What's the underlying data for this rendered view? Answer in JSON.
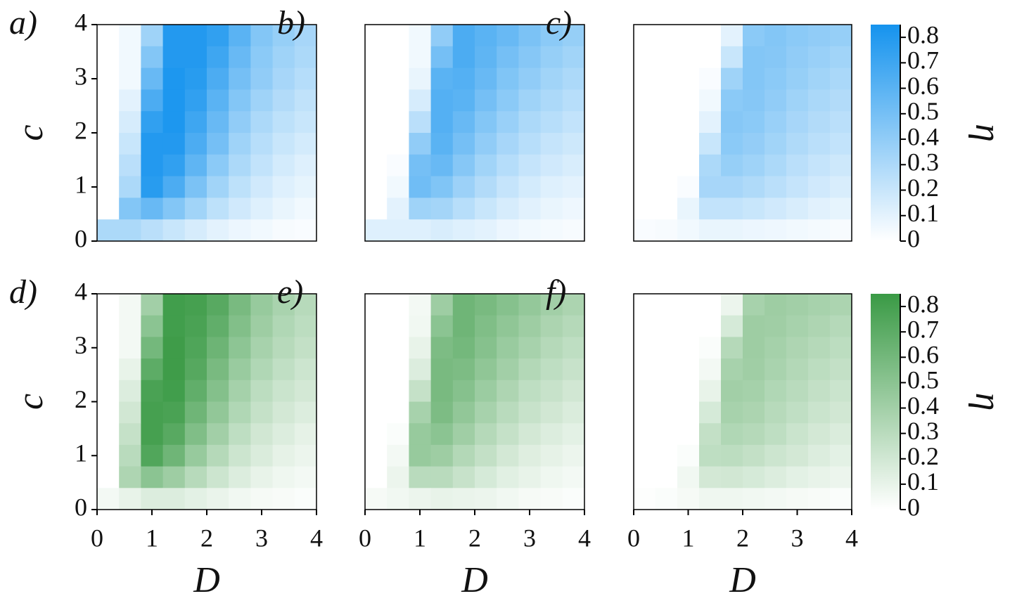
{
  "chart_data": [
    {
      "type": "heatmap",
      "label": "a)",
      "color": "#1593ee",
      "zlim": [
        0,
        0.85
      ],
      "x": [
        0.2,
        0.6,
        1.0,
        1.4,
        1.8,
        2.2,
        2.6,
        3.0,
        3.4,
        3.8
      ],
      "y": [
        3.8,
        3.4,
        3.0,
        2.6,
        2.2,
        1.8,
        1.4,
        1.0,
        0.6,
        0.2
      ],
      "z": [
        [
          0,
          0.05,
          0.35,
          0.8,
          0.8,
          0.75,
          0.6,
          0.45,
          0.38,
          0.32
        ],
        [
          0,
          0.05,
          0.45,
          0.8,
          0.8,
          0.7,
          0.55,
          0.42,
          0.35,
          0.3
        ],
        [
          0,
          0.05,
          0.55,
          0.82,
          0.78,
          0.65,
          0.5,
          0.4,
          0.32,
          0.27
        ],
        [
          0,
          0.1,
          0.65,
          0.82,
          0.75,
          0.6,
          0.45,
          0.35,
          0.28,
          0.23
        ],
        [
          0,
          0.15,
          0.75,
          0.82,
          0.7,
          0.55,
          0.4,
          0.3,
          0.24,
          0.2
        ],
        [
          0,
          0.2,
          0.8,
          0.8,
          0.65,
          0.5,
          0.35,
          0.26,
          0.2,
          0.16
        ],
        [
          0,
          0.25,
          0.8,
          0.75,
          0.58,
          0.42,
          0.3,
          0.22,
          0.16,
          0.12
        ],
        [
          0,
          0.3,
          0.78,
          0.65,
          0.48,
          0.34,
          0.24,
          0.17,
          0.12,
          0.09
        ],
        [
          0,
          0.45,
          0.55,
          0.45,
          0.34,
          0.24,
          0.17,
          0.12,
          0.08,
          0.05
        ],
        [
          0.3,
          0.3,
          0.25,
          0.2,
          0.15,
          0.1,
          0.07,
          0.05,
          0.03,
          0.02
        ]
      ],
      "xlim": [
        0,
        4
      ],
      "ylim": [
        0,
        4
      ],
      "yticks": [
        0,
        1,
        2,
        3,
        4
      ],
      "ylabel": "c"
    },
    {
      "type": "heatmap",
      "label": "b)",
      "color": "#1593ee",
      "zlim": [
        0,
        0.85
      ],
      "x": [
        0.2,
        0.6,
        1.0,
        1.4,
        1.8,
        2.2,
        2.6,
        3.0,
        3.4,
        3.8
      ],
      "y": [
        3.8,
        3.4,
        3.0,
        2.6,
        2.2,
        1.8,
        1.4,
        1.0,
        0.6,
        0.2
      ],
      "z": [
        [
          0,
          0,
          0.05,
          0.4,
          0.65,
          0.6,
          0.55,
          0.48,
          0.42,
          0.38
        ],
        [
          0,
          0,
          0.05,
          0.5,
          0.65,
          0.58,
          0.5,
          0.44,
          0.38,
          0.34
        ],
        [
          0,
          0,
          0.08,
          0.6,
          0.62,
          0.55,
          0.46,
          0.4,
          0.34,
          0.3
        ],
        [
          0,
          0,
          0.15,
          0.62,
          0.6,
          0.5,
          0.42,
          0.35,
          0.3,
          0.26
        ],
        [
          0,
          0,
          0.25,
          0.62,
          0.55,
          0.45,
          0.37,
          0.3,
          0.26,
          0.22
        ],
        [
          0,
          0,
          0.4,
          0.6,
          0.5,
          0.4,
          0.32,
          0.26,
          0.21,
          0.18
        ],
        [
          0,
          0.02,
          0.5,
          0.55,
          0.44,
          0.34,
          0.27,
          0.21,
          0.17,
          0.14
        ],
        [
          0,
          0.05,
          0.52,
          0.46,
          0.36,
          0.28,
          0.21,
          0.16,
          0.12,
          0.1
        ],
        [
          0,
          0.1,
          0.35,
          0.33,
          0.26,
          0.2,
          0.15,
          0.11,
          0.08,
          0.06
        ],
        [
          0.12,
          0.12,
          0.12,
          0.14,
          0.12,
          0.1,
          0.07,
          0.05,
          0.04,
          0.03
        ]
      ],
      "xlim": [
        0,
        4
      ],
      "ylim": [
        0,
        4
      ]
    },
    {
      "type": "heatmap",
      "label": "c)",
      "color": "#1593ee",
      "zlim": [
        0,
        0.85
      ],
      "x": [
        0.2,
        0.6,
        1.0,
        1.4,
        1.8,
        2.2,
        2.6,
        3.0,
        3.4,
        3.8
      ],
      "y": [
        3.8,
        3.4,
        3.0,
        2.6,
        2.2,
        1.8,
        1.4,
        1.0,
        0.6,
        0.2
      ],
      "z": [
        [
          0,
          0,
          0,
          0,
          0.1,
          0.42,
          0.45,
          0.42,
          0.4,
          0.38
        ],
        [
          0,
          0,
          0,
          0,
          0.2,
          0.45,
          0.44,
          0.4,
          0.37,
          0.34
        ],
        [
          0,
          0,
          0,
          0.02,
          0.35,
          0.45,
          0.42,
          0.38,
          0.34,
          0.31
        ],
        [
          0,
          0,
          0,
          0.05,
          0.42,
          0.44,
          0.4,
          0.35,
          0.31,
          0.28
        ],
        [
          0,
          0,
          0,
          0.1,
          0.44,
          0.42,
          0.37,
          0.32,
          0.28,
          0.25
        ],
        [
          0,
          0,
          0,
          0.2,
          0.42,
          0.39,
          0.34,
          0.29,
          0.25,
          0.22
        ],
        [
          0,
          0,
          0,
          0.3,
          0.38,
          0.35,
          0.3,
          0.25,
          0.21,
          0.18
        ],
        [
          0,
          0,
          0.02,
          0.32,
          0.32,
          0.29,
          0.25,
          0.21,
          0.17,
          0.14
        ],
        [
          0,
          0,
          0.08,
          0.22,
          0.22,
          0.2,
          0.17,
          0.14,
          0.11,
          0.09
        ],
        [
          0.02,
          0.03,
          0.05,
          0.08,
          0.08,
          0.07,
          0.06,
          0.05,
          0.04,
          0.03
        ]
      ],
      "xlim": [
        0,
        4
      ],
      "ylim": [
        0,
        4
      ]
    },
    {
      "type": "colorbar",
      "color": "#1593ee",
      "lim": [
        0,
        0.85
      ],
      "ticks": [
        0,
        0.1,
        0.2,
        0.3,
        0.4,
        0.5,
        0.6,
        0.7,
        0.8
      ],
      "label": "η"
    },
    {
      "type": "heatmap",
      "label": "d)",
      "color": "#3a9a45",
      "zlim": [
        0,
        0.85
      ],
      "x": [
        0.2,
        0.6,
        1.0,
        1.4,
        1.8,
        2.2,
        2.6,
        3.0,
        3.4,
        3.8
      ],
      "y": [
        3.8,
        3.4,
        3.0,
        2.6,
        2.2,
        1.8,
        1.4,
        1.0,
        0.6,
        0.2
      ],
      "z": [
        [
          0,
          0.05,
          0.4,
          0.82,
          0.8,
          0.72,
          0.58,
          0.45,
          0.37,
          0.31
        ],
        [
          0,
          0.05,
          0.5,
          0.82,
          0.78,
          0.68,
          0.54,
          0.42,
          0.34,
          0.29
        ],
        [
          0,
          0.05,
          0.6,
          0.83,
          0.76,
          0.63,
          0.49,
          0.38,
          0.31,
          0.26
        ],
        [
          0,
          0.1,
          0.7,
          0.83,
          0.73,
          0.58,
          0.44,
          0.34,
          0.27,
          0.22
        ],
        [
          0,
          0.15,
          0.78,
          0.82,
          0.68,
          0.53,
          0.39,
          0.29,
          0.23,
          0.19
        ],
        [
          0,
          0.2,
          0.8,
          0.78,
          0.62,
          0.47,
          0.34,
          0.25,
          0.19,
          0.15
        ],
        [
          0,
          0.25,
          0.8,
          0.72,
          0.55,
          0.4,
          0.28,
          0.2,
          0.15,
          0.11
        ],
        [
          0,
          0.3,
          0.75,
          0.62,
          0.45,
          0.32,
          0.22,
          0.16,
          0.11,
          0.08
        ],
        [
          0,
          0.35,
          0.5,
          0.42,
          0.31,
          0.22,
          0.15,
          0.1,
          0.07,
          0.05
        ],
        [
          0.05,
          0.1,
          0.15,
          0.15,
          0.12,
          0.09,
          0.06,
          0.04,
          0.03,
          0.02
        ]
      ],
      "xlim": [
        0,
        4
      ],
      "ylim": [
        0,
        4
      ],
      "xticks": [
        0,
        1,
        2,
        3,
        4
      ],
      "yticks": [
        0,
        1,
        2,
        3,
        4
      ],
      "xlabel": "D",
      "ylabel": "c"
    },
    {
      "type": "heatmap",
      "label": "e)",
      "color": "#3a9a45",
      "zlim": [
        0,
        0.85
      ],
      "x": [
        0.2,
        0.6,
        1.0,
        1.4,
        1.8,
        2.2,
        2.6,
        3.0,
        3.4,
        3.8
      ],
      "y": [
        3.8,
        3.4,
        3.0,
        2.6,
        2.2,
        1.8,
        1.4,
        1.0,
        0.6,
        0.2
      ],
      "z": [
        [
          0,
          0,
          0.05,
          0.42,
          0.62,
          0.58,
          0.52,
          0.46,
          0.4,
          0.36
        ],
        [
          0,
          0,
          0.06,
          0.5,
          0.62,
          0.55,
          0.48,
          0.42,
          0.36,
          0.32
        ],
        [
          0,
          0,
          0.1,
          0.56,
          0.6,
          0.52,
          0.44,
          0.38,
          0.32,
          0.28
        ],
        [
          0,
          0,
          0.15,
          0.58,
          0.56,
          0.48,
          0.4,
          0.33,
          0.28,
          0.24
        ],
        [
          0,
          0,
          0.25,
          0.58,
          0.52,
          0.43,
          0.35,
          0.28,
          0.24,
          0.2
        ],
        [
          0,
          0,
          0.38,
          0.56,
          0.47,
          0.38,
          0.3,
          0.24,
          0.2,
          0.16
        ],
        [
          0,
          0.02,
          0.45,
          0.5,
          0.41,
          0.32,
          0.25,
          0.19,
          0.15,
          0.12
        ],
        [
          0,
          0.05,
          0.45,
          0.42,
          0.33,
          0.26,
          0.19,
          0.14,
          0.11,
          0.08
        ],
        [
          0,
          0.08,
          0.3,
          0.3,
          0.24,
          0.18,
          0.13,
          0.1,
          0.07,
          0.05
        ],
        [
          0.04,
          0.06,
          0.08,
          0.1,
          0.09,
          0.08,
          0.06,
          0.04,
          0.03,
          0.02
        ]
      ],
      "xlim": [
        0,
        4
      ],
      "ylim": [
        0,
        4
      ],
      "xticks": [
        0,
        1,
        2,
        3,
        4
      ],
      "xlabel": "D"
    },
    {
      "type": "heatmap",
      "label": "f)",
      "color": "#3a9a45",
      "zlim": [
        0,
        0.85
      ],
      "x": [
        0.2,
        0.6,
        1.0,
        1.4,
        1.8,
        2.2,
        2.6,
        3.0,
        3.4,
        3.8
      ],
      "y": [
        3.8,
        3.4,
        3.0,
        2.6,
        2.2,
        1.8,
        1.4,
        1.0,
        0.6,
        0.2
      ],
      "z": [
        [
          0,
          0,
          0,
          0,
          0.08,
          0.38,
          0.42,
          0.4,
          0.38,
          0.36
        ],
        [
          0,
          0,
          0,
          0,
          0.18,
          0.42,
          0.41,
          0.38,
          0.35,
          0.32
        ],
        [
          0,
          0,
          0,
          0.02,
          0.32,
          0.42,
          0.39,
          0.35,
          0.32,
          0.29
        ],
        [
          0,
          0,
          0,
          0.05,
          0.38,
          0.41,
          0.37,
          0.33,
          0.29,
          0.26
        ],
        [
          0,
          0,
          0,
          0.1,
          0.4,
          0.39,
          0.34,
          0.3,
          0.26,
          0.23
        ],
        [
          0,
          0,
          0,
          0.18,
          0.38,
          0.36,
          0.31,
          0.27,
          0.23,
          0.2
        ],
        [
          0,
          0,
          0,
          0.26,
          0.34,
          0.32,
          0.28,
          0.23,
          0.19,
          0.16
        ],
        [
          0,
          0,
          0.02,
          0.28,
          0.29,
          0.26,
          0.22,
          0.19,
          0.15,
          0.12
        ],
        [
          0,
          0,
          0.06,
          0.19,
          0.2,
          0.18,
          0.15,
          0.12,
          0.1,
          0.08
        ],
        [
          0.01,
          0.02,
          0.04,
          0.07,
          0.07,
          0.06,
          0.05,
          0.04,
          0.03,
          0.02
        ]
      ],
      "xlim": [
        0,
        4
      ],
      "ylim": [
        0,
        4
      ],
      "xticks": [
        0,
        1,
        2,
        3,
        4
      ],
      "xlabel": "D"
    },
    {
      "type": "colorbar",
      "color": "#3a9a45",
      "lim": [
        0,
        0.85
      ],
      "ticks": [
        0,
        0.1,
        0.2,
        0.3,
        0.4,
        0.5,
        0.6,
        0.7,
        0.8
      ],
      "label": "η"
    }
  ]
}
